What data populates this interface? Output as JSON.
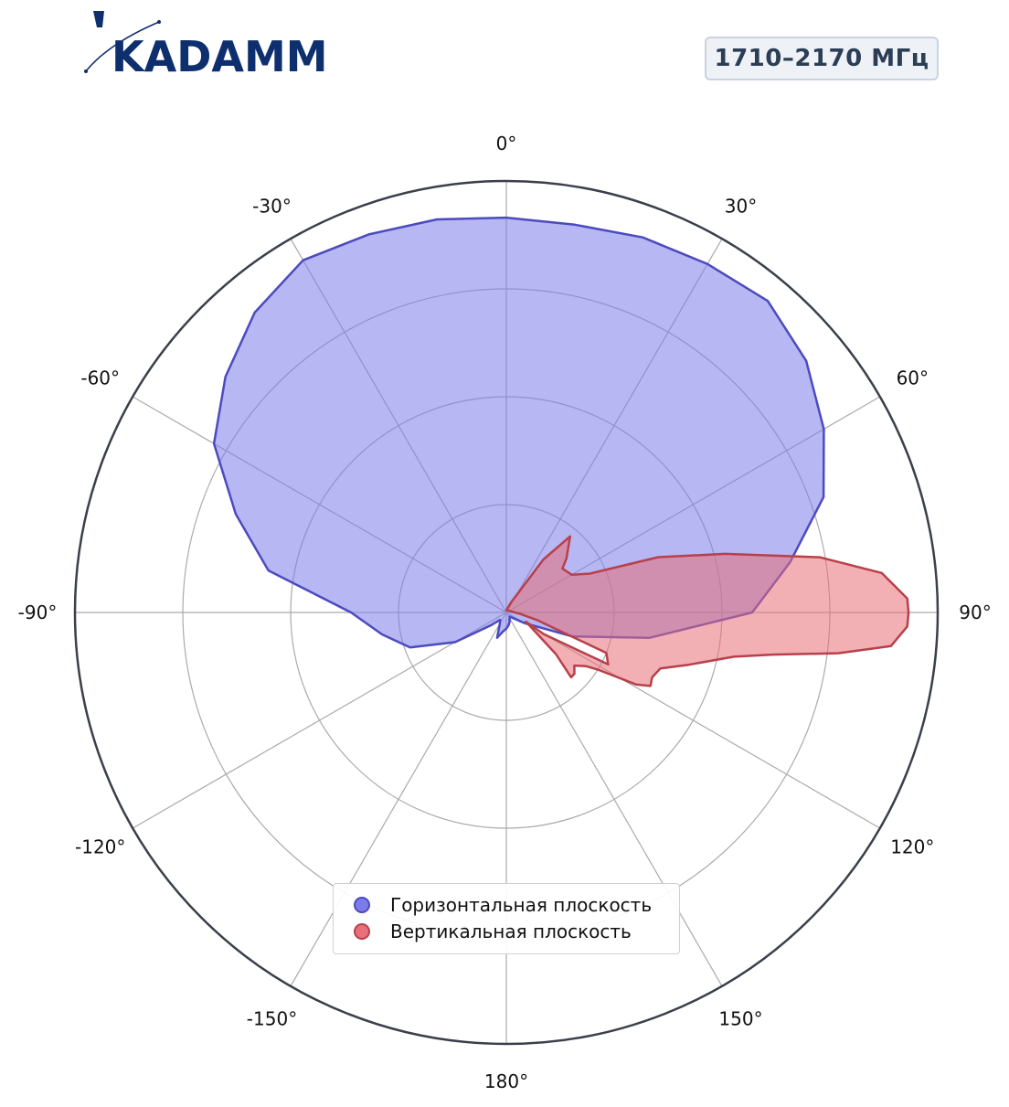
{
  "brand": {
    "logo_text": "KADAMM"
  },
  "badge": {
    "frequency": "1710–2170 МГц"
  },
  "chart_data": {
    "type": "polar-area",
    "title": "",
    "angular_axis": {
      "direction": "clockwise",
      "zero": "top",
      "ticks": [
        0,
        30,
        60,
        90,
        120,
        150,
        180,
        -150,
        -120,
        -90,
        -60,
        -30
      ],
      "tick_labels": [
        "0°",
        "30°",
        "60°",
        "90°",
        "120°",
        "150°",
        "180°",
        "-150°",
        "-120°",
        "-90°",
        "-60°",
        "-30°"
      ]
    },
    "radial_axis": {
      "range": [
        0,
        4
      ],
      "gridlines": [
        1,
        2,
        3,
        4
      ],
      "tick_labels_shown": false
    },
    "grid": true,
    "legend_position": "bottom-center",
    "series": [
      {
        "name": "Горизонтальная плоскость",
        "color": "#4b4bc0",
        "fill": "#7b7bea",
        "points": [
          [
            0,
            3.66
          ],
          [
            10,
            3.65
          ],
          [
            20,
            3.7
          ],
          [
            30,
            3.73
          ],
          [
            40,
            3.77
          ],
          [
            50,
            3.63
          ],
          [
            60,
            3.4
          ],
          [
            70,
            3.13
          ],
          [
            80,
            2.67
          ],
          [
            90,
            2.28
          ],
          [
            100,
            1.35
          ],
          [
            110,
            0.65
          ],
          [
            120,
            0.2
          ],
          [
            130,
            0.08
          ],
          [
            140,
            0.05
          ],
          [
            150,
            0.06
          ],
          [
            160,
            0.09
          ],
          [
            170,
            0.12
          ],
          [
            180,
            0.15
          ],
          [
            190,
            0.18
          ],
          [
            200,
            0.25
          ],
          [
            210,
            0.12
          ],
          [
            220,
            0.09
          ],
          [
            230,
            0.18
          ],
          [
            240,
            0.55
          ],
          [
            250,
            0.95
          ],
          [
            260,
            1.17
          ],
          [
            270,
            1.44
          ],
          [
            280,
            2.24
          ],
          [
            290,
            2.67
          ],
          [
            300,
            3.13
          ],
          [
            310,
            3.4
          ],
          [
            320,
            3.63
          ],
          [
            330,
            3.77
          ],
          [
            340,
            3.73
          ],
          [
            350,
            3.7
          ],
          [
            360,
            3.66
          ]
        ]
      },
      {
        "name": "Вертикальная плоскость",
        "color": "#b8404a",
        "fill": "#e87078",
        "points": [
          [
            0,
            0.02
          ],
          [
            25,
            0.1
          ],
          [
            35,
            0.6
          ],
          [
            40,
            0.92
          ],
          [
            48,
            0.75
          ],
          [
            52,
            0.66
          ],
          [
            60,
            0.7
          ],
          [
            65,
            0.85
          ],
          [
            70,
            1.5
          ],
          [
            75,
            2.1
          ],
          [
            80,
            2.95
          ],
          [
            84,
            3.5
          ],
          [
            88,
            3.72
          ],
          [
            90,
            3.73
          ],
          [
            92,
            3.72
          ],
          [
            95,
            3.58
          ],
          [
            97,
            3.1
          ],
          [
            99,
            2.5
          ],
          [
            101,
            2.15
          ],
          [
            106,
            1.76
          ],
          [
            110,
            1.52
          ],
          [
            114,
            1.48
          ],
          [
            117,
            1.5
          ],
          [
            119,
            1.38
          ],
          [
            122,
            1.0
          ],
          [
            124,
            0.89
          ],
          [
            128,
            0.8
          ],
          [
            132,
            0.85
          ],
          [
            135,
            0.85
          ],
          [
            130,
            0.6
          ],
          [
            115,
            0.2
          ],
          [
            120,
            0.4
          ],
          [
            117,
            1.06
          ],
          [
            112,
            1.0
          ],
          [
            104,
            0.3
          ],
          [
            95,
            0.12
          ],
          [
            90,
            0.08
          ],
          [
            60,
            0.03
          ],
          [
            0,
            0.02
          ]
        ]
      }
    ]
  }
}
